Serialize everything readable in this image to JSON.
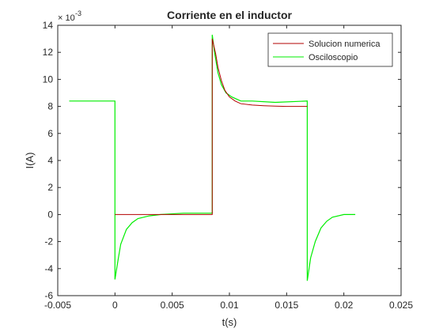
{
  "chart_data": {
    "type": "line",
    "title": "Corriente en el inductor",
    "xlabel": "t(s)",
    "ylabel": "I(A)",
    "xlim": [
      -0.005,
      0.025
    ],
    "ylim": [
      -6,
      14
    ],
    "y_multiplier": "× 10",
    "y_exponent": "-3",
    "xticks": [
      -0.005,
      0,
      0.005,
      0.01,
      0.015,
      0.02,
      0.025
    ],
    "xtick_labels": [
      "-0.005",
      "0",
      "0.005",
      "0.01",
      "0.015",
      "0.02",
      "0.025"
    ],
    "yticks": [
      -6,
      -4,
      -2,
      0,
      2,
      4,
      6,
      8,
      10,
      12,
      14
    ],
    "ytick_labels": [
      "-6",
      "-4",
      "-2",
      "0",
      "2",
      "4",
      "6",
      "8",
      "10",
      "12",
      "14"
    ],
    "grid": false,
    "legend_position": "top-right",
    "series": [
      {
        "name": "Solucion numerica",
        "color": "#b30000",
        "x": [
          0,
          0.0085,
          0.0085,
          0.0088,
          0.009,
          0.0093,
          0.0096,
          0.01,
          0.0105,
          0.011,
          0.012,
          0.013,
          0.014,
          0.015,
          0.016,
          0.0168
        ],
        "y": [
          0,
          0,
          13.0,
          11.9,
          10.9,
          9.9,
          9.2,
          8.7,
          8.4,
          8.2,
          8.1,
          8.05,
          8.02,
          8.0,
          8.0,
          8.0
        ]
      },
      {
        "name": "Osciloscopio",
        "color": "#00ee00",
        "x": [
          -0.004,
          -0.002,
          0,
          0,
          0.0003,
          0.0005,
          0.001,
          0.0015,
          0.002,
          0.003,
          0.004,
          0.006,
          0.0085,
          0.0085,
          0.0087,
          0.009,
          0.0093,
          0.0097,
          0.0102,
          0.011,
          0.012,
          0.014,
          0.0168,
          0.0168,
          0.0171,
          0.0175,
          0.018,
          0.0185,
          0.019,
          0.02,
          0.021
        ],
        "y": [
          8.4,
          8.4,
          8.4,
          -4.8,
          -3.2,
          -2.2,
          -1.1,
          -0.6,
          -0.3,
          -0.1,
          0,
          0.1,
          0.1,
          13.3,
          12.0,
          10.5,
          9.6,
          9.0,
          8.7,
          8.4,
          8.4,
          8.3,
          8.4,
          -4.9,
          -3.2,
          -2.0,
          -1.0,
          -0.5,
          -0.2,
          0,
          0
        ]
      }
    ]
  }
}
